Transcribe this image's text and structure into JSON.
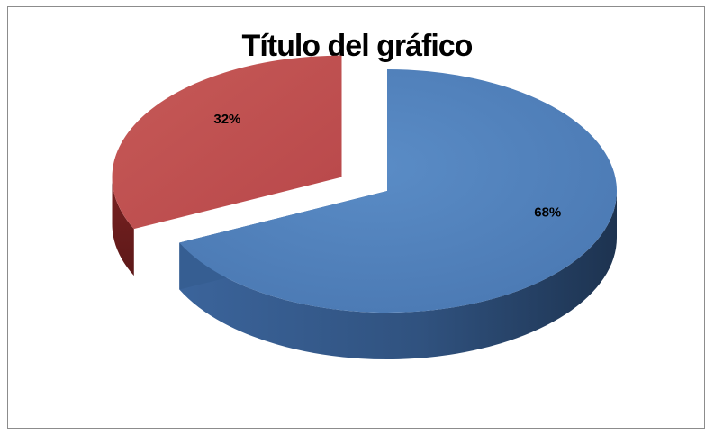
{
  "chart_data": {
    "type": "pie",
    "title": "Título del gráfico",
    "categories": [
      "",
      ""
    ],
    "values": [
      68,
      32
    ],
    "labels": [
      "68%",
      "32%"
    ],
    "colors": [
      "#4f81bd",
      "#c0504d"
    ],
    "explode": [
      false,
      true
    ],
    "style": "3d"
  }
}
